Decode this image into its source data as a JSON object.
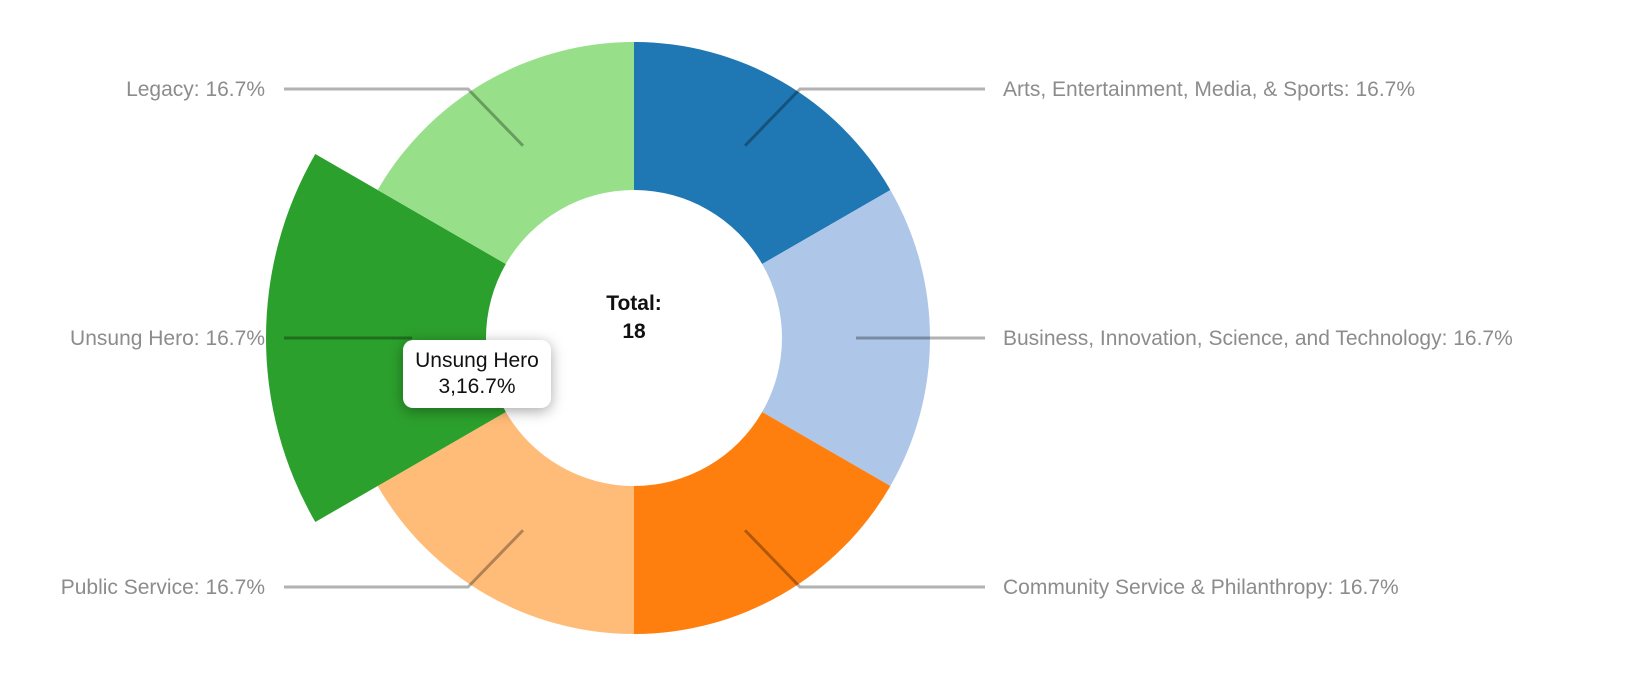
{
  "chart_data": {
    "type": "pie",
    "variant": "donut",
    "center_label": "Total:",
    "center_value": "18",
    "slices": [
      {
        "name": "Arts, Entertainment, Media, & Sports",
        "value": 3,
        "percent_label": "16.7%",
        "color": "#1f77b4"
      },
      {
        "name": "Business, Innovation, Science, and Technology",
        "value": 3,
        "percent_label": "16.7%",
        "color": "#aec7e8"
      },
      {
        "name": "Community Service & Philanthropy",
        "value": 3,
        "percent_label": "16.7%",
        "color": "#ff7f0e"
      },
      {
        "name": "Public Service",
        "value": 3,
        "percent_label": "16.7%",
        "color": "#ffbb78"
      },
      {
        "name": "Unsung Hero",
        "value": 3,
        "percent_label": "16.7%",
        "color": "#2ca02c",
        "highlighted": true
      },
      {
        "name": "Legacy",
        "value": 3,
        "percent_label": "16.7%",
        "color": "#98df8a"
      }
    ],
    "tooltip": {
      "title": "Unsung Hero",
      "value": "3,16.7%"
    },
    "legend": "callouts"
  }
}
